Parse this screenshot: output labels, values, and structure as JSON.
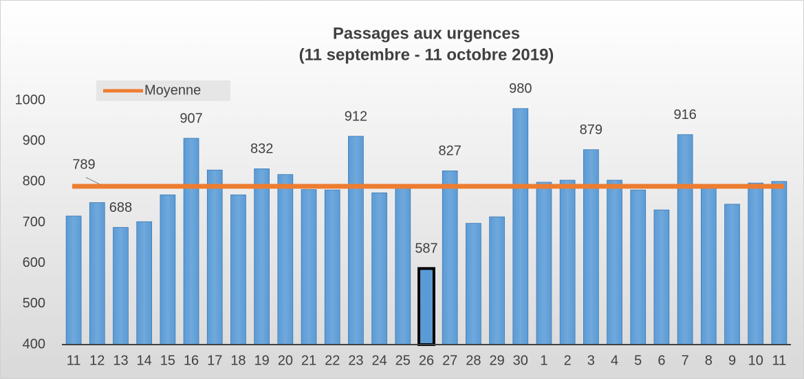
{
  "chart_data": {
    "type": "bar",
    "title": "Passages aux urgences",
    "subtitle": "(11 septembre - 11 octobre 2019)",
    "categories": [
      "11",
      "12",
      "13",
      "14",
      "15",
      "16",
      "17",
      "18",
      "19",
      "20",
      "21",
      "22",
      "23",
      "24",
      "25",
      "26",
      "27",
      "28",
      "29",
      "30",
      "1",
      "2",
      "3",
      "4",
      "5",
      "6",
      "7",
      "8",
      "9",
      "10",
      "11"
    ],
    "values": [
      716,
      749,
      688,
      702,
      768,
      907,
      829,
      768,
      832,
      818,
      781,
      780,
      912,
      773,
      790,
      587,
      827,
      698,
      714,
      980,
      799,
      804,
      879,
      804,
      780,
      731,
      916,
      789,
      745,
      797,
      801
    ],
    "value_labels": [
      null,
      null,
      "688",
      null,
      null,
      "907",
      null,
      null,
      "832",
      null,
      null,
      null,
      "912",
      null,
      null,
      "587",
      "827",
      null,
      null,
      "980",
      null,
      null,
      "879",
      null,
      null,
      null,
      "916",
      null,
      null,
      null,
      null
    ],
    "color": "#5b9bd5",
    "highlight_index": 15,
    "average": {
      "name": "Moyenne",
      "value": 789,
      "label": "789",
      "color": "#ed7d31"
    },
    "ylim": [
      400,
      1000
    ],
    "yticks": [
      400,
      500,
      600,
      700,
      800,
      900,
      1000
    ]
  }
}
